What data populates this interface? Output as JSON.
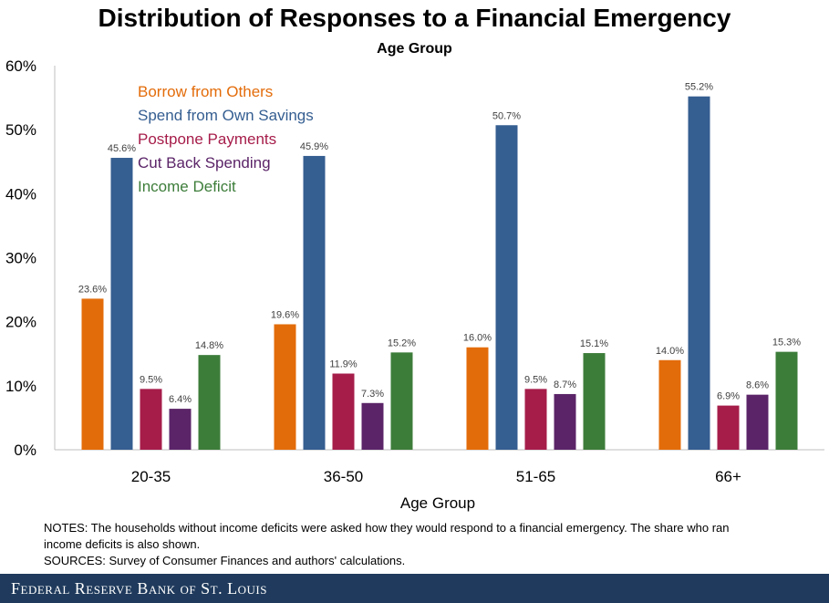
{
  "chart_data": {
    "type": "bar",
    "title": "Distribution of Responses to a Financial Emergency",
    "subtitle": "Age Group",
    "xlabel": "Age Group",
    "ylabel": "",
    "ylim": [
      0,
      60
    ],
    "ytick_labels": [
      "0%",
      "10%",
      "20%",
      "30%",
      "40%",
      "50%",
      "60%"
    ],
    "yticks": [
      0,
      10,
      20,
      30,
      40,
      50,
      60
    ],
    "categories": [
      "20-35",
      "36-50",
      "51-65",
      "66+"
    ],
    "legend_position": "top-left",
    "grid": false,
    "series": [
      {
        "name": "Borrow from Others",
        "color": "#e36c0a",
        "values": [
          23.6,
          19.6,
          16.0,
          14.0
        ],
        "labels": [
          "23.6%",
          "19.6%",
          "16.0%",
          "14.0%"
        ]
      },
      {
        "name": "Spend from Own Savings",
        "color": "#355e91",
        "values": [
          45.6,
          45.9,
          50.7,
          55.2
        ],
        "labels": [
          "45.6%",
          "45.9%",
          "50.7%",
          "55.2%"
        ]
      },
      {
        "name": "Postpone Payments",
        "color": "#a61d4a",
        "values": [
          9.5,
          11.9,
          9.5,
          6.9
        ],
        "labels": [
          "9.5%",
          "11.9%",
          "9.5%",
          "6.9%"
        ]
      },
      {
        "name": "Cut Back Spending",
        "color": "#5b2468",
        "values": [
          6.4,
          7.3,
          8.7,
          8.6
        ],
        "labels": [
          "6.4%",
          "7.3%",
          "8.7%",
          "8.6%"
        ]
      },
      {
        "name": "Income Deficit",
        "color": "#3d7d3a",
        "values": [
          14.8,
          15.2,
          15.1,
          15.3
        ],
        "labels": [
          "14.8%",
          "15.2%",
          "15.1%",
          "15.3%"
        ]
      }
    ]
  },
  "notes": {
    "line1": "NOTES: The households without income deficits were asked how they would respond to a financial emergency. The share who ran",
    "line2": "income deficits is also shown.",
    "line3": "SOURCES: Survey of Consumer Finances and authors' calculations."
  },
  "footer": {
    "text": "Federal Reserve Bank of St. Louis"
  }
}
